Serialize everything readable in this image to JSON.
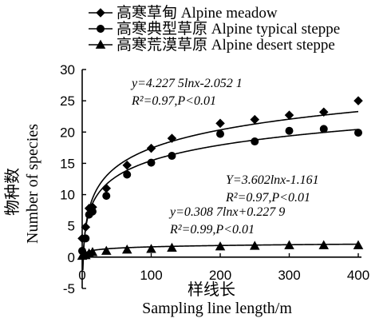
{
  "chart_data": {
    "type": "scatter",
    "x": [
      0,
      5,
      10,
      15,
      35,
      65,
      100,
      130,
      200,
      250,
      300,
      350,
      400
    ],
    "series": [
      {
        "name": "高寒草甸 Alpine meadow",
        "marker": "diamond",
        "values": [
          3,
          4.8,
          7.8,
          8,
          11,
          14.7,
          17.4,
          19,
          21.4,
          22,
          22.7,
          23.2,
          25
        ],
        "fit": {
          "a": 4.2275,
          "b": -2.0521
        }
      },
      {
        "name": "高寒典型草原 Alpine typical steppe",
        "marker": "circle",
        "values": [
          1,
          3,
          6.8,
          7.3,
          9.8,
          13.2,
          15.1,
          16.2,
          19.7,
          18.5,
          20.2,
          20.5,
          19.9
        ],
        "fit": {
          "a": 3.602,
          "b": -1.161
        }
      },
      {
        "name": "高寒荒漠草原 Alpine desert steppe",
        "marker": "triangle",
        "values": [
          0.2,
          0.3,
          0.6,
          0.8,
          1,
          1.2,
          1.3,
          1.5,
          1.7,
          1.8,
          1.9,
          1.9,
          1.9
        ],
        "fit": {
          "a": 0.3087,
          "b": 0.2279
        }
      }
    ],
    "annotations": [
      {
        "series": 0,
        "line1": "y=4.227 5lnx-2.052 1",
        "line2": "R²=0.97,P<0.01"
      },
      {
        "series": 1,
        "line1": "Y=3.602lnx-1.161",
        "line2": "R²=0.97,P<0.01"
      },
      {
        "series": 2,
        "line1": "y=0.308 7lnx+0.227 9",
        "line2": "R²=0.99,P<0.01"
      }
    ],
    "xlabel_cn": "样线长",
    "xlabel": "Sampling line length/m",
    "ylabel_cn": "物种数",
    "ylabel": "Number of species",
    "xlim": [
      0,
      400
    ],
    "ylim": [
      -5,
      30
    ],
    "xticks": [
      0,
      100,
      200,
      300,
      400
    ],
    "yticks": [
      -5,
      0,
      5,
      10,
      15,
      20,
      25,
      30
    ],
    "grid": false,
    "legend_position": "top"
  }
}
